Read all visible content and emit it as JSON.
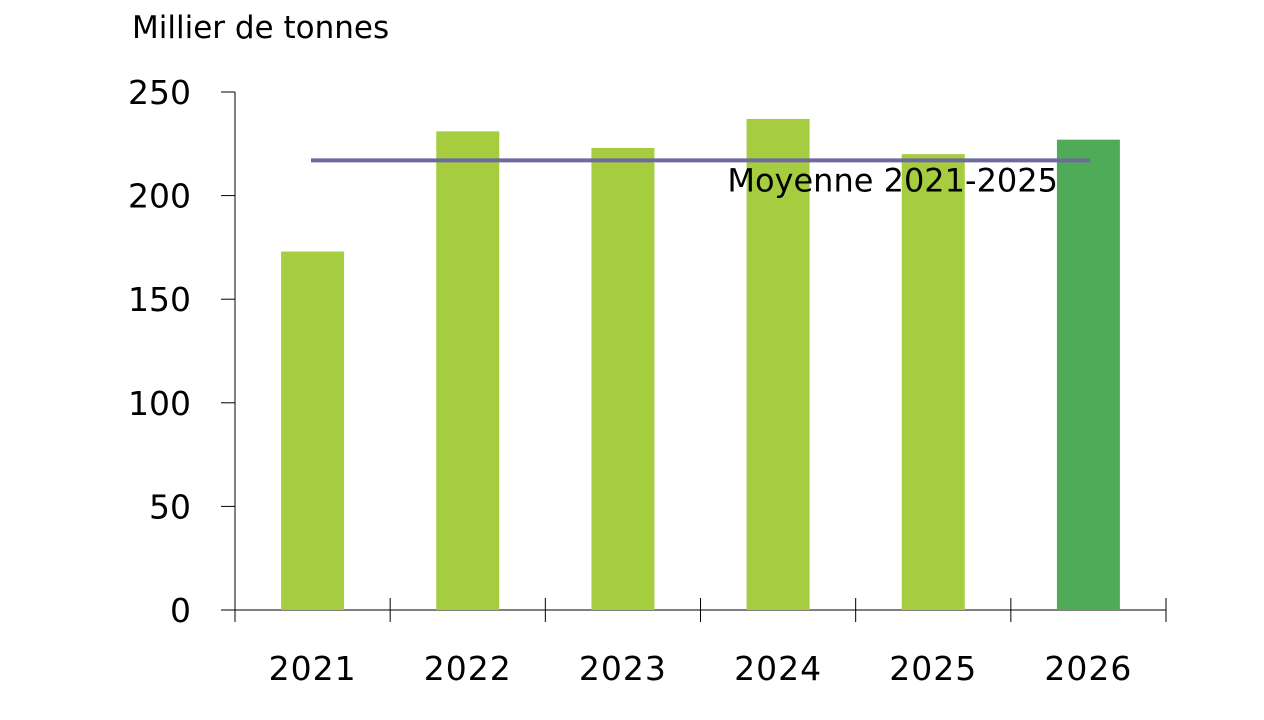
{
  "chart_data": {
    "type": "bar",
    "ylabel": "Millier de tonnes",
    "categories": [
      "2021",
      "2022",
      "2023",
      "2024",
      "2025",
      "2026"
    ],
    "values": [
      173,
      231,
      223,
      237,
      220,
      227
    ],
    "ylim": [
      0,
      250
    ],
    "yticks": [
      "0",
      "50",
      "100",
      "150",
      "200",
      "250"
    ],
    "grid": false,
    "colors": {
      "bar": "#a6cd40",
      "bar_highlight": "#50ab58",
      "average_line": "#6e6a9e",
      "axis": "#000000"
    },
    "highlight_category": "2026",
    "reference_line": {
      "label": "Moyenne 2021-2025",
      "value": 217
    }
  }
}
